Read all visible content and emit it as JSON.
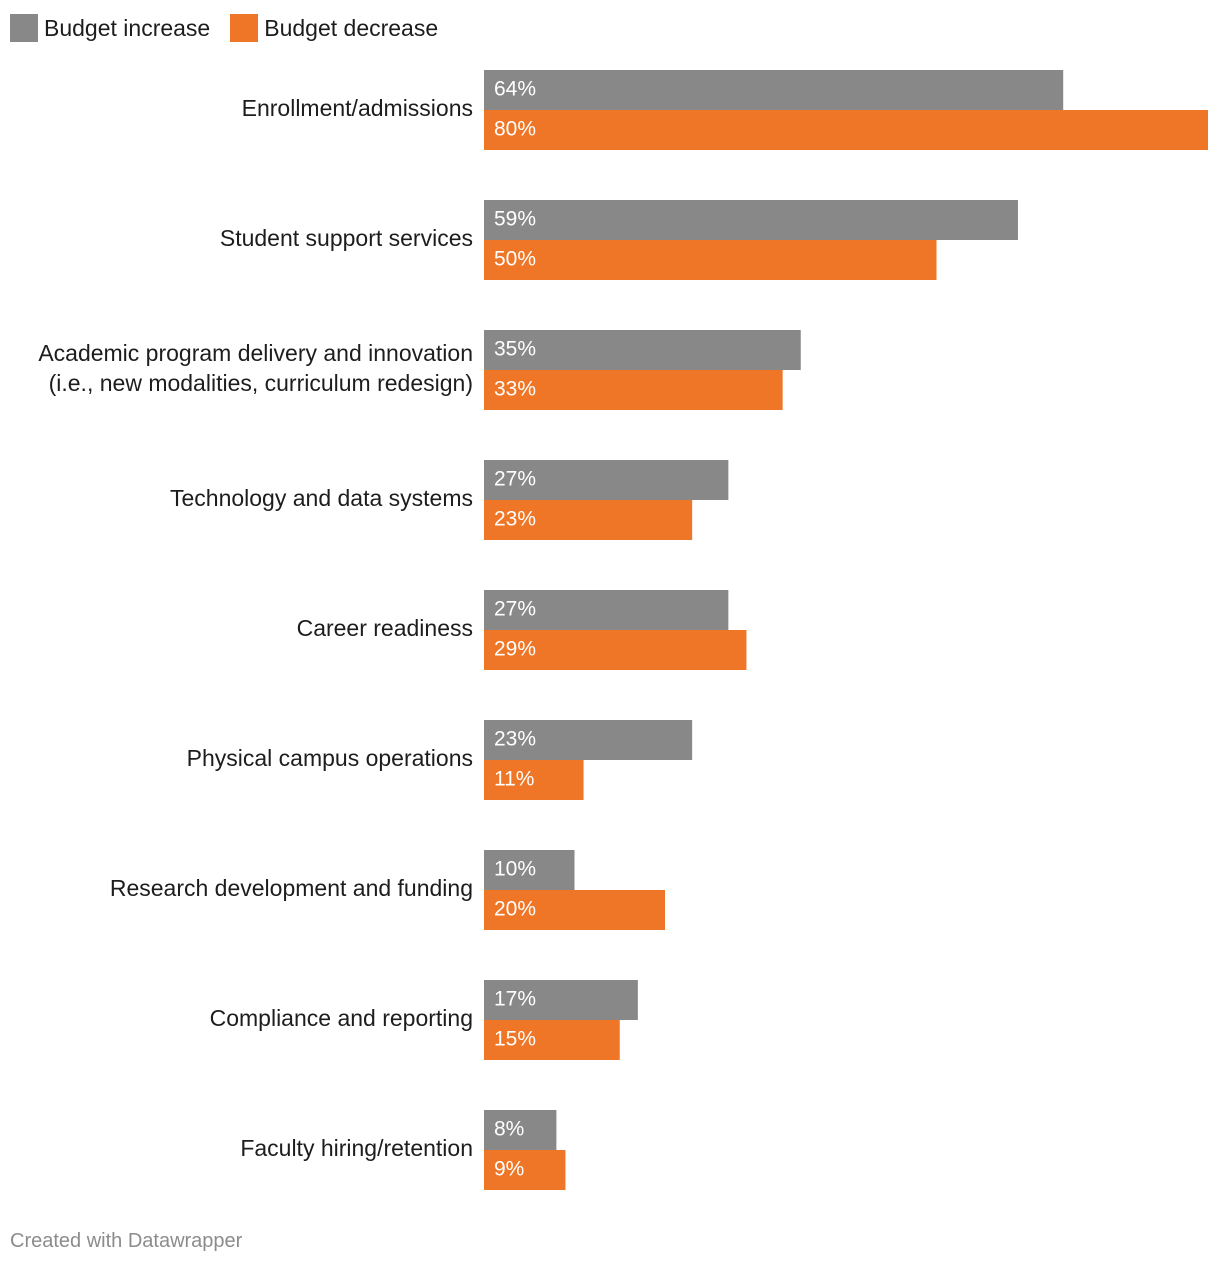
{
  "legend": {
    "items": [
      {
        "label": "Budget increase",
        "color": "#888888"
      },
      {
        "label": "Budget decrease",
        "color": "#ee7626"
      }
    ]
  },
  "footer": "Created with Datawrapper",
  "chart_data": {
    "type": "bar",
    "orientation": "horizontal",
    "categories": [
      [
        "Enrollment/admissions"
      ],
      [
        "Student support services"
      ],
      [
        "Academic program delivery and innovation",
        "(i.e., new modalities, curriculum redesign)"
      ],
      [
        "Technology and data systems"
      ],
      [
        "Career readiness"
      ],
      [
        "Physical campus operations"
      ],
      [
        "Research development and funding"
      ],
      [
        "Compliance and reporting"
      ],
      [
        "Faculty hiring/retention"
      ]
    ],
    "series": [
      {
        "name": "Budget increase",
        "color": "#888888",
        "values": [
          64,
          59,
          35,
          27,
          27,
          23,
          10,
          17,
          8
        ]
      },
      {
        "name": "Budget decrease",
        "color": "#ee7626",
        "values": [
          80,
          50,
          33,
          23,
          29,
          11,
          20,
          15,
          9
        ]
      }
    ],
    "value_suffix": "%",
    "xlim": [
      0,
      80
    ],
    "grid": false,
    "legend_position": "top-left"
  }
}
